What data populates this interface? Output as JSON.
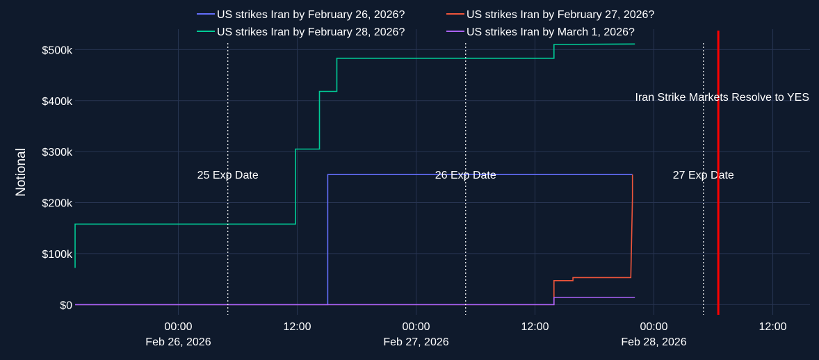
{
  "chart_data": {
    "type": "line",
    "ylabel": "Notional",
    "xlabel": "",
    "y_ticks": [
      {
        "value": 0,
        "label": "$0"
      },
      {
        "value": 100000,
        "label": "$100k"
      },
      {
        "value": 200000,
        "label": "$200k"
      },
      {
        "value": 300000,
        "label": "$300k"
      },
      {
        "value": 400000,
        "label": "$400k"
      },
      {
        "value": 500000,
        "label": "$500k"
      }
    ],
    "ylim": [
      -20000,
      540000
    ],
    "xlim": [
      "2026-02-25T13:35",
      "2026-02-28T15:45"
    ],
    "x_ticks": [
      {
        "value": "2026-02-26T00:00",
        "label": "00:00",
        "sublabel": "Feb 26, 2026"
      },
      {
        "value": "2026-02-26T12:00",
        "label": "12:00",
        "sublabel": ""
      },
      {
        "value": "2026-02-27T00:00",
        "label": "00:00",
        "sublabel": "Feb 27, 2026"
      },
      {
        "value": "2026-02-27T12:00",
        "label": "12:00",
        "sublabel": ""
      },
      {
        "value": "2026-02-28T00:00",
        "label": "00:00",
        "sublabel": "Feb 28, 2026"
      },
      {
        "value": "2026-02-28T12:00",
        "label": "12:00",
        "sublabel": ""
      }
    ],
    "grid": true,
    "legend_position": "top",
    "series": [
      {
        "name": "US strikes Iran by February 26, 2026?",
        "color": "#636efa",
        "points": [
          [
            "2026-02-25T13:35",
            0
          ],
          [
            "2026-02-26T15:05",
            0
          ],
          [
            "2026-02-26T15:05",
            255000
          ],
          [
            "2026-02-27T21:50",
            255000
          ]
        ]
      },
      {
        "name": "US strikes Iran by February 27, 2026?",
        "color": "#ef553b",
        "points": [
          [
            "2026-02-25T13:35",
            0
          ],
          [
            "2026-02-27T13:55",
            0
          ],
          [
            "2026-02-27T13:55",
            47000
          ],
          [
            "2026-02-27T15:50",
            47000
          ],
          [
            "2026-02-27T15:50",
            53000
          ],
          [
            "2026-02-27T21:40",
            53000
          ],
          [
            "2026-02-27T21:50",
            210000
          ],
          [
            "2026-02-27T21:50",
            255000
          ]
        ]
      },
      {
        "name": "US strikes Iran by February 28, 2026?",
        "color": "#00cc96",
        "points": [
          [
            "2026-02-25T13:35",
            72000
          ],
          [
            "2026-02-25T13:35",
            158000
          ],
          [
            "2026-02-26T11:50",
            158000
          ],
          [
            "2026-02-26T11:50",
            305000
          ],
          [
            "2026-02-26T14:15",
            305000
          ],
          [
            "2026-02-26T14:15",
            418000
          ],
          [
            "2026-02-26T16:00",
            418000
          ],
          [
            "2026-02-26T16:00",
            483000
          ],
          [
            "2026-02-27T13:55",
            483000
          ],
          [
            "2026-02-27T13:55",
            510000
          ],
          [
            "2026-02-27T22:05",
            511000
          ]
        ]
      },
      {
        "name": "US strikes Iran by March 1, 2026?",
        "color": "#ab63fa",
        "points": [
          [
            "2026-02-25T13:35",
            0
          ],
          [
            "2026-02-27T13:55",
            0
          ],
          [
            "2026-02-27T13:55",
            14000
          ],
          [
            "2026-02-27T22:05",
            14000
          ]
        ]
      }
    ],
    "vlines": [
      {
        "x": "2026-02-26T05:00",
        "style": "dotted",
        "color": "#ffffff",
        "label": "25 Exp Date"
      },
      {
        "x": "2026-02-27T05:00",
        "style": "dotted",
        "color": "#ffffff",
        "label": "26 Exp Date"
      },
      {
        "x": "2026-02-28T05:00",
        "style": "dotted",
        "color": "#ffffff",
        "label": "27 Exp Date"
      },
      {
        "x": "2026-02-28T06:30",
        "style": "solid",
        "color": "#ff0000",
        "label": "Iran Strike Markets Resolve to YES"
      }
    ]
  }
}
